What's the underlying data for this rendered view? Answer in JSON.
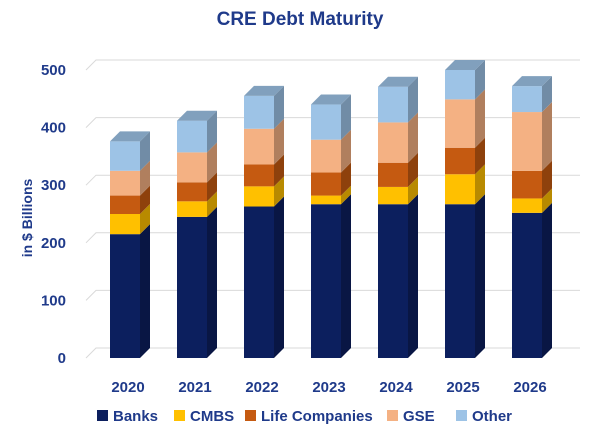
{
  "chart_data": {
    "type": "bar",
    "stacked": true,
    "style": "3d",
    "title": "CRE Debt Maturity",
    "xlabel": "",
    "ylabel": "in $ Billions",
    "ylim": [
      0,
      500
    ],
    "yticks": [
      "0",
      "100",
      "200",
      "300",
      "400",
      "500"
    ],
    "grid": true,
    "legend_position": "bottom",
    "categories": [
      "2020",
      "2021",
      "2022",
      "2023",
      "2024",
      "2025",
      "2026"
    ],
    "series": [
      {
        "name": "Banks",
        "color": "#0c1f5e",
        "values": [
          215,
          245,
          263,
          267,
          267,
          267,
          252
        ]
      },
      {
        "name": "CMBS",
        "color": "#ffc000",
        "values": [
          35,
          27,
          35,
          15,
          30,
          52,
          25
        ]
      },
      {
        "name": "Life Companies",
        "color": "#c55a11",
        "values": [
          32,
          33,
          38,
          40,
          42,
          46,
          48
        ]
      },
      {
        "name": "GSE",
        "color": "#f4b183",
        "values": [
          43,
          52,
          62,
          57,
          70,
          84,
          102
        ]
      },
      {
        "name": "Other",
        "color": "#9dc3e6",
        "values": [
          51,
          55,
          57,
          61,
          62,
          51,
          45
        ]
      }
    ]
  }
}
